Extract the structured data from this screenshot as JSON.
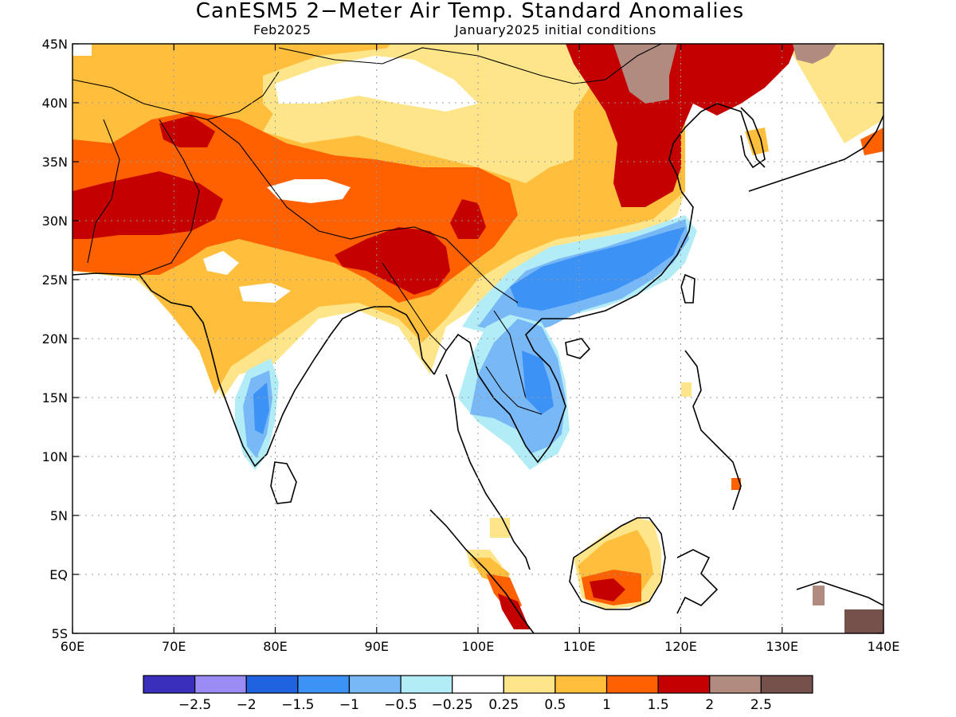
{
  "title": "CanESM5 2−Meter Air Temp. Standard Anomalies",
  "valid_month": "Feb2025",
  "initial_conditions": "January2025 initial conditions",
  "axes": {
    "lon_ticks": [
      "60E",
      "70E",
      "80E",
      "90E",
      "100E",
      "110E",
      "120E",
      "130E",
      "140E"
    ],
    "lat_ticks": [
      "45N",
      "40N",
      "35N",
      "30N",
      "25N",
      "20N",
      "15N",
      "10N",
      "5N",
      "EQ",
      "5S"
    ],
    "lon_range": [
      60,
      140
    ],
    "lat_range": [
      -5,
      45
    ],
    "grid": true
  },
  "colorbar": {
    "colors": [
      "#3a2fbd",
      "#9b8bf5",
      "#1f63e0",
      "#3c92f5",
      "#78b8f7",
      "#b1ecf7",
      "#ffffff",
      "#ffe58a",
      "#ffbf3c",
      "#ff6000",
      "#c40000",
      "#b18a80",
      "#76514b"
    ],
    "labels": [
      "−2.5",
      "−2",
      "−1.5",
      "−1",
      "−0.5",
      "−0.25",
      "0.25",
      "0.5",
      "1",
      "1.5",
      "2",
      "2.5"
    ]
  },
  "anomaly_regions": [
    {
      "name": "northwest-orange",
      "level": "1",
      "color": "#ffbf3c"
    },
    {
      "name": "iran-afghan-dark-orange",
      "level": "1.5",
      "color": "#ff6000"
    },
    {
      "name": "pakistan-red",
      "level": "2",
      "color": "#c40000"
    },
    {
      "name": "tibet-white",
      "level": "0.25",
      "color": "#ffffff"
    },
    {
      "name": "northeast-china-red",
      "level": "2",
      "color": "#c40000"
    },
    {
      "name": "northeast-china-brown",
      "level": "2.5",
      "color": "#b18a80"
    },
    {
      "name": "south-china-blue",
      "level": "-1",
      "color": "#3c92f5"
    },
    {
      "name": "indochina-blue",
      "level": "-0.5",
      "color": "#78b8f7"
    },
    {
      "name": "south-india-blue",
      "level": "-1",
      "color": "#3c92f5"
    },
    {
      "name": "borneo-orange",
      "level": "1",
      "color": "#ffbf3c"
    },
    {
      "name": "sumatra-red",
      "level": "2",
      "color": "#c40000"
    }
  ]
}
